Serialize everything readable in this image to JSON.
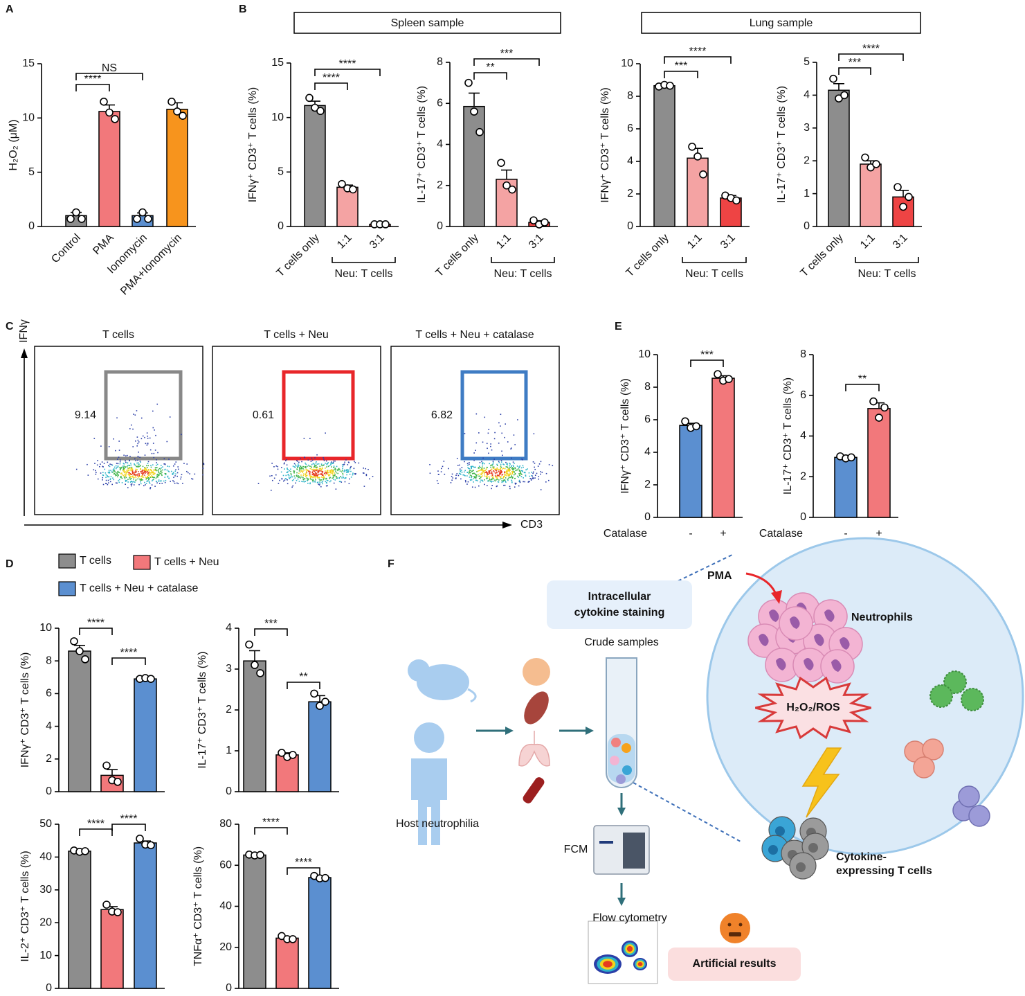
{
  "panels": [
    "A",
    "B",
    "C",
    "D",
    "E",
    "F"
  ],
  "sample_boxes": [
    "Spleen sample",
    "Lung sample"
  ],
  "legend_D": [
    {
      "name": "T cells",
      "color": "#8d8d8d"
    },
    {
      "name": "T cells + Neu",
      "color": "#f2787b"
    },
    {
      "name": "T cells + Neu + catalase",
      "color": "#5b8fd0"
    }
  ],
  "chart_data": [
    {
      "type": "bar",
      "ylabel": "H₂O₂ (μM)",
      "categories": [
        "Control",
        "PMA",
        "Ionomycin",
        "PMA+Ionomycin"
      ],
      "values": [
        1.0,
        10.6,
        1.0,
        10.8
      ],
      "errors": [
        0.3,
        0.6,
        0.25,
        0.6
      ],
      "points": [
        [
          0.7,
          1.3,
          0.7
        ],
        [
          11.5,
          10.5,
          9.9
        ],
        [
          0.7,
          1.3,
          0.7
        ],
        [
          11.5,
          10.6,
          10.2
        ]
      ],
      "colors": [
        "#8d8d8d",
        "#f2787b",
        "#5b8fd0",
        "#f7941d"
      ],
      "ylim": [
        0,
        15
      ],
      "yticks": [
        0,
        5,
        10,
        15
      ],
      "annotations": [
        "****",
        "NS"
      ]
    },
    {
      "type": "bar",
      "ylabel": "IFNγ⁺ CD3⁺ T cells (%)",
      "categories": [
        "T cells only",
        "1:1",
        "3:1"
      ],
      "group_label": "Neu: T cells",
      "values": [
        11.1,
        3.6,
        0.2
      ],
      "errors": [
        0.4,
        0.2,
        0.05
      ],
      "points": [
        [
          11.8,
          10.9,
          10.6
        ],
        [
          3.9,
          3.5,
          3.4
        ],
        [
          0.2,
          0.2,
          0.2
        ]
      ],
      "colors": [
        "#8d8d8d",
        "#f4a3a3",
        "#ee4444"
      ],
      "ylim": [
        0,
        15
      ],
      "yticks": [
        0,
        5,
        10,
        15
      ],
      "annotations": [
        "****",
        "****"
      ]
    },
    {
      "type": "bar",
      "ylabel": "IL-17⁺ CD3⁺ T cells (%)",
      "categories": [
        "T cells only",
        "1:1",
        "3:1"
      ],
      "group_label": "Neu: T cells",
      "values": [
        5.85,
        2.3,
        0.2
      ],
      "errors": [
        0.65,
        0.45,
        0.08
      ],
      "points": [
        [
          7.0,
          5.6,
          4.6
        ],
        [
          3.1,
          2.0,
          1.8
        ],
        [
          0.3,
          0.1,
          0.2
        ]
      ],
      "colors": [
        "#8d8d8d",
        "#f4a3a3",
        "#ee4444"
      ],
      "ylim": [
        0,
        8
      ],
      "yticks": [
        0,
        2,
        4,
        6,
        8
      ],
      "annotations": [
        "**",
        "***"
      ]
    },
    {
      "type": "bar",
      "ylabel": "IFNγ⁺ CD3⁺ T cells (%)",
      "categories": [
        "T cells only",
        "1:1",
        "3:1"
      ],
      "group_label": "Neu: T cells",
      "values": [
        8.65,
        4.2,
        1.75
      ],
      "errors": [
        0.06,
        0.6,
        0.15
      ],
      "points": [
        [
          8.6,
          8.7,
          8.65
        ],
        [
          4.9,
          4.3,
          3.2
        ],
        [
          1.9,
          1.75,
          1.6
        ]
      ],
      "colors": [
        "#8d8d8d",
        "#f4a3a3",
        "#ee4444"
      ],
      "ylim": [
        0,
        10
      ],
      "yticks": [
        0,
        2,
        4,
        6,
        8,
        10
      ],
      "annotations": [
        "***",
        "****"
      ]
    },
    {
      "type": "bar",
      "ylabel": "IL-17⁺ CD3⁺ T cells (%)",
      "categories": [
        "T cells only",
        "1:1",
        "3:1"
      ],
      "group_label": "Neu: T cells",
      "values": [
        4.15,
        1.9,
        0.9
      ],
      "errors": [
        0.2,
        0.1,
        0.2
      ],
      "points": [
        [
          4.5,
          3.9,
          4.0
        ],
        [
          2.1,
          1.8,
          1.9
        ],
        [
          1.2,
          0.6,
          0.9
        ]
      ],
      "colors": [
        "#8d8d8d",
        "#f4a3a3",
        "#ee4444"
      ],
      "ylim": [
        0,
        5
      ],
      "yticks": [
        0,
        1,
        2,
        3,
        4,
        5
      ],
      "annotations": [
        "***",
        "****"
      ]
    },
    {
      "type": "bar",
      "ylabel": "IFNγ⁺ CD3⁺ T cells (%)",
      "xlabel": "Catalase",
      "categories": [
        "-",
        "+"
      ],
      "values": [
        5.65,
        8.55
      ],
      "errors": [
        0.13,
        0.15
      ],
      "points": [
        [
          5.9,
          5.5,
          5.6
        ],
        [
          8.8,
          8.4,
          8.5
        ]
      ],
      "colors": [
        "#5b8fd0",
        "#f2787b"
      ],
      "ylim": [
        0,
        10
      ],
      "yticks": [
        0,
        2,
        4,
        6,
        8,
        10
      ],
      "annotations": [
        "***"
      ]
    },
    {
      "type": "bar",
      "ylabel": "IL-17⁺ CD3⁺ T cells (%)",
      "xlabel": "Catalase",
      "categories": [
        "-",
        "+"
      ],
      "values": [
        2.95,
        5.35
      ],
      "errors": [
        0.04,
        0.28
      ],
      "points": [
        [
          3.0,
          2.9,
          2.95
        ],
        [
          5.7,
          4.9,
          5.4
        ]
      ],
      "colors": [
        "#5b8fd0",
        "#f2787b"
      ],
      "ylim": [
        0,
        8
      ],
      "yticks": [
        0,
        2,
        4,
        6,
        8
      ],
      "annotations": [
        "**"
      ]
    },
    {
      "type": "bar",
      "ylabel": "IFNγ⁺ CD3⁺ T cells (%)",
      "categories": [
        null,
        null,
        null
      ],
      "values": [
        8.6,
        1.0,
        6.9
      ],
      "errors": [
        0.35,
        0.35,
        0.04
      ],
      "points": [
        [
          9.2,
          8.6,
          8.1
        ],
        [
          1.6,
          0.7,
          0.6
        ],
        [
          6.9,
          6.95,
          6.9
        ]
      ],
      "colors": [
        "#8d8d8d",
        "#f2787b",
        "#5b8fd0"
      ],
      "ylim": [
        0,
        10
      ],
      "yticks": [
        0,
        2,
        4,
        6,
        8,
        10
      ],
      "annotations": [
        "****",
        "****"
      ]
    },
    {
      "type": "bar",
      "ylabel": "IL-17⁺ CD3⁺ T cells (%)",
      "categories": [
        null,
        null,
        null
      ],
      "values": [
        3.2,
        0.9,
        2.2
      ],
      "errors": [
        0.25,
        0.05,
        0.15
      ],
      "points": [
        [
          3.6,
          3.1,
          2.9
        ],
        [
          0.95,
          0.85,
          0.9
        ],
        [
          2.4,
          2.1,
          2.2
        ]
      ],
      "colors": [
        "#8d8d8d",
        "#f2787b",
        "#5b8fd0"
      ],
      "ylim": [
        0,
        4
      ],
      "yticks": [
        0,
        1,
        2,
        3,
        4
      ],
      "annotations": [
        "***",
        "**"
      ]
    },
    {
      "type": "bar",
      "ylabel": "IL-2⁺ CD3⁺ T cells (%)",
      "categories": [
        null,
        null,
        null
      ],
      "values": [
        41.8,
        24,
        44.3
      ],
      "errors": [
        0.3,
        0.9,
        0.6
      ],
      "points": [
        [
          42,
          41.6,
          41.8
        ],
        [
          25.5,
          23.4,
          23.2
        ],
        [
          45.6,
          43.8,
          43.6
        ]
      ],
      "colors": [
        "#8d8d8d",
        "#f2787b",
        "#5b8fd0"
      ],
      "ylim": [
        0,
        50
      ],
      "yticks": [
        0,
        10,
        20,
        30,
        40,
        50
      ],
      "annotations": [
        "****",
        "****"
      ]
    },
    {
      "type": "bar",
      "ylabel": "TNFα⁺ CD3⁺ T cells (%)",
      "categories": [
        null,
        null,
        null
      ],
      "values": [
        65,
        24.5,
        54
      ],
      "errors": [
        0.3,
        0.7,
        0.5
      ],
      "points": [
        [
          65.2,
          64.8,
          65
        ],
        [
          25.5,
          24,
          24
        ],
        [
          54.8,
          53.6,
          53.8
        ]
      ],
      "colors": [
        "#8d8d8d",
        "#f2787b",
        "#5b8fd0"
      ],
      "ylim": [
        0,
        80
      ],
      "yticks": [
        0,
        20,
        40,
        60,
        80
      ],
      "annotations": [
        "****",
        "****"
      ]
    }
  ],
  "flow": {
    "titles": [
      "T cells",
      "T cells + Neu",
      "T cells + Neu + catalase"
    ],
    "gates": [
      9.14,
      0.61,
      6.82
    ],
    "y_axis": "IFNγ",
    "x_axis": "CD3"
  },
  "diagram": {
    "pma": "PMA",
    "neutrophils": "Neutrophils",
    "staining": [
      "Intracellular",
      "cytokine staining"
    ],
    "crude": "Crude samples",
    "ros": "H₂O₂/ROS",
    "host": "Host neutrophilia",
    "fcm": "FCM",
    "tcells": [
      "Cytokine-",
      "expressing T cells"
    ],
    "flow_plot": "Flow cytometry",
    "artificial": "Artificial results"
  }
}
